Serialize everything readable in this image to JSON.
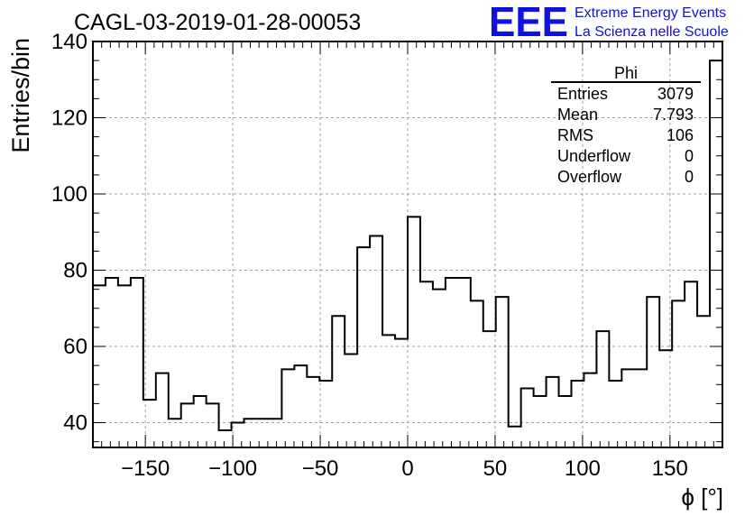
{
  "chart_data": {
    "type": "bar",
    "title": "CAGL-03-2019-01-28-00053",
    "xlabel": "ϕ [°]",
    "ylabel": "Entries/bin",
    "xlim": [
      -180,
      180
    ],
    "ylim": [
      33.5,
      140
    ],
    "bin_width": 7.2,
    "grid": true,
    "x_ticks": [
      -150,
      -100,
      -50,
      0,
      50,
      100,
      150
    ],
    "x_tick_labels": [
      "−150",
      "−100",
      "−50",
      "0",
      "50",
      "100",
      "150"
    ],
    "y_ticks": [
      40,
      60,
      80,
      100,
      120,
      140
    ],
    "y_tick_labels": [
      "40",
      "60",
      "80",
      "100",
      "120",
      "140"
    ],
    "values": [
      76,
      78,
      76,
      78,
      46,
      53,
      41,
      45,
      47,
      45,
      38,
      40,
      41,
      41,
      41,
      54,
      55,
      52,
      51,
      68,
      58,
      86,
      89,
      63,
      62,
      94,
      77,
      75,
      78,
      78,
      72,
      64,
      73,
      39,
      49,
      47,
      52,
      47,
      51,
      53,
      64,
      51,
      54,
      54,
      73,
      59,
      72,
      77,
      68,
      135
    ],
    "stats_box": {
      "title": "Phi",
      "rows": [
        {
          "label": "Entries",
          "value": "3079"
        },
        {
          "label": "Mean",
          "value": "7.793"
        },
        {
          "label": "RMS",
          "value": "106"
        },
        {
          "label": "Underflow",
          "value": "0"
        },
        {
          "label": "Overflow",
          "value": "0"
        }
      ]
    },
    "logo": {
      "mark": "EEE",
      "line1": "Extreme Energy Events",
      "line2": "La Scienza nelle Scuole",
      "color": "#1010e0"
    }
  }
}
